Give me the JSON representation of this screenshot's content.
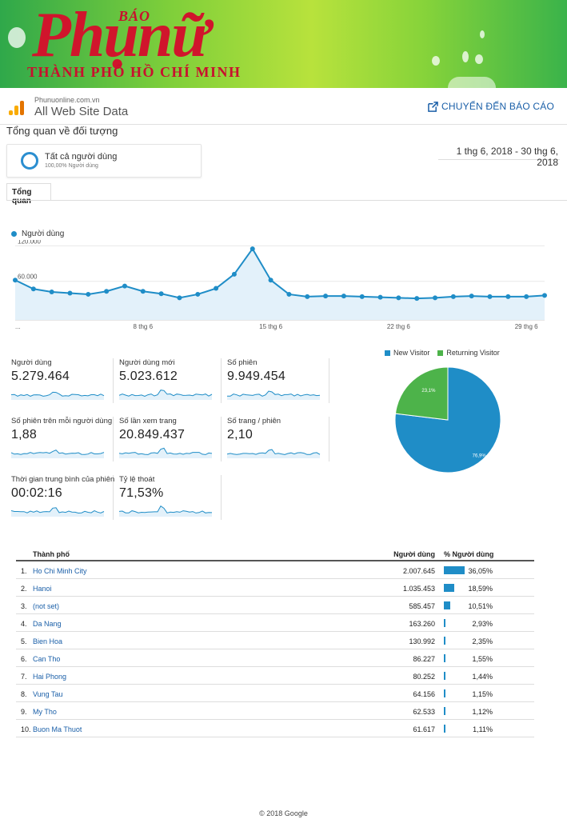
{
  "banner": {
    "bao": "BÁO",
    "main": "Phụnữ",
    "sub": "THÀNH PHỐ HỒ CHÍ MINH"
  },
  "header": {
    "domain": "Phunuonline.com.vn",
    "view": "All Web Site Data",
    "report_link": "CHUYỂN ĐẾN BÁO CÁO"
  },
  "page_title": "Tổng quan về đối tượng",
  "segment": {
    "name": "Tất cả người dùng",
    "pct": "100,00% Người dùng"
  },
  "date_range": "1 thg 6, 2018 - 30 thg 6, 2018",
  "tab": "Tổng quan",
  "chart_data": [
    {
      "type": "line",
      "series": [
        {
          "name": "Người dùng",
          "values": [
            62000,
            47000,
            42000,
            40000,
            38000,
            43000,
            52000,
            43000,
            39000,
            32000,
            38000,
            48000,
            72000,
            115000,
            62000,
            38000,
            34000,
            35000,
            35000,
            34000,
            33000,
            32000,
            31000,
            32000,
            34000,
            35000,
            34000,
            34000,
            34000,
            36000
          ]
        }
      ],
      "x_ticks": [
        "...",
        "8 thg 6",
        "15 thg 6",
        "22 thg 6",
        "29 thg 6"
      ],
      "y_ticks": [
        "120.000",
        "60.000"
      ],
      "ylim": [
        0,
        130000
      ],
      "color": "#1f8dc7"
    },
    {
      "type": "pie",
      "slices": [
        {
          "name": "New Visitor",
          "value": 76.9,
          "label": "76,9%",
          "color": "#1f8dc7"
        },
        {
          "name": "Returning Visitor",
          "value": 23.1,
          "label": "23,1%",
          "color": "#4db34a"
        }
      ]
    }
  ],
  "metrics": [
    {
      "label": "Người dùng",
      "value": "5.279.464"
    },
    {
      "label": "Người dùng mới",
      "value": "5.023.612"
    },
    {
      "label": "Số phiên",
      "value": "9.949.454"
    },
    {
      "label": "Số phiên trên mỗi người dùng",
      "value": "1,88"
    },
    {
      "label": "Số lần xem trang",
      "value": "20.849.437"
    },
    {
      "label": "Số trang / phiên",
      "value": "2,10"
    },
    {
      "label": "Thời gian trung bình của phiên",
      "value": "00:02:16"
    },
    {
      "label": "Tỷ lệ thoát",
      "value": "71,53%"
    }
  ],
  "table": {
    "headers": {
      "city": "Thành phố",
      "users": "Người dùng",
      "pct": "% Người dùng"
    },
    "rows": [
      {
        "num": "1.",
        "city": "Ho Chi Minh City",
        "users": "2.007.645",
        "pct": "36,05%",
        "share": 36.05
      },
      {
        "num": "2.",
        "city": "Hanoi",
        "users": "1.035.453",
        "pct": "18,59%",
        "share": 18.59
      },
      {
        "num": "3.",
        "city": "(not set)",
        "users": "585.457",
        "pct": "10,51%",
        "share": 10.51
      },
      {
        "num": "4.",
        "city": "Da Nang",
        "users": "163.260",
        "pct": "2,93%",
        "share": 2.93
      },
      {
        "num": "5.",
        "city": "Bien Hoa",
        "users": "130.992",
        "pct": "2,35%",
        "share": 2.35
      },
      {
        "num": "6.",
        "city": "Can Tho",
        "users": "86.227",
        "pct": "1,55%",
        "share": 1.55
      },
      {
        "num": "7.",
        "city": "Hai Phong",
        "users": "80.252",
        "pct": "1,44%",
        "share": 1.44
      },
      {
        "num": "8.",
        "city": "Vung Tau",
        "users": "64.156",
        "pct": "1,15%",
        "share": 1.15
      },
      {
        "num": "9.",
        "city": "My Tho",
        "users": "62.533",
        "pct": "1,12%",
        "share": 1.12
      },
      {
        "num": "10.",
        "city": "Buon Ma Thuot",
        "users": "61.617",
        "pct": "1,11%",
        "share": 1.11
      }
    ]
  },
  "footer": "© 2018 Google"
}
